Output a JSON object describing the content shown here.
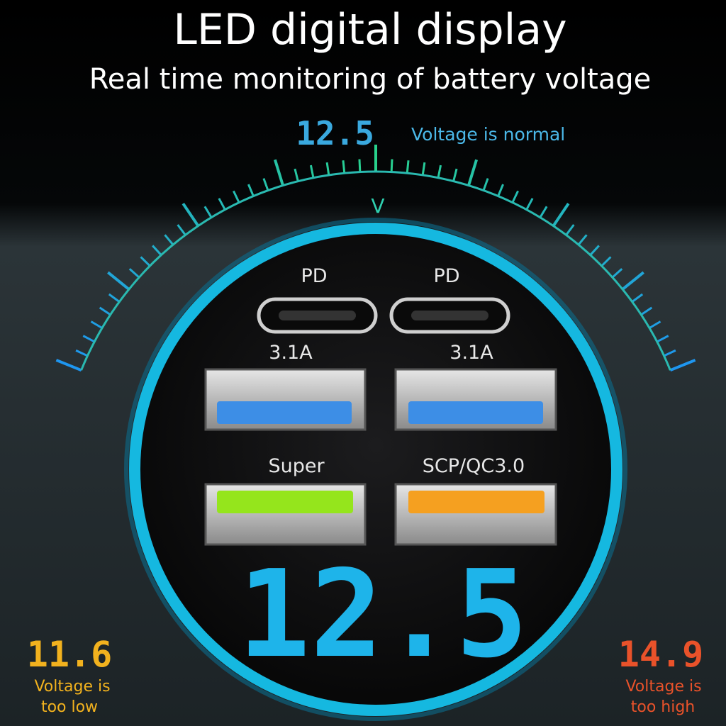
{
  "header": {
    "title": "LED digital display",
    "subtitle": "Real time monitoring of battery voltage"
  },
  "gauge": {
    "reading": "12.5",
    "status": "Voltage is normal",
    "unit": "V",
    "low": {
      "reading": "11.6",
      "line1": "Voltage is",
      "line2": "too low"
    },
    "high": {
      "reading": "14.9",
      "line1": "Voltage is",
      "line2": "too high"
    }
  },
  "ports": [
    {
      "label": "PD"
    },
    {
      "label": "PD"
    },
    {
      "label": "3.1A"
    },
    {
      "label": "3.1A"
    },
    {
      "label": "Super"
    },
    {
      "label": "SCP/QC3.0"
    }
  ],
  "display": {
    "reading": "12.5"
  }
}
